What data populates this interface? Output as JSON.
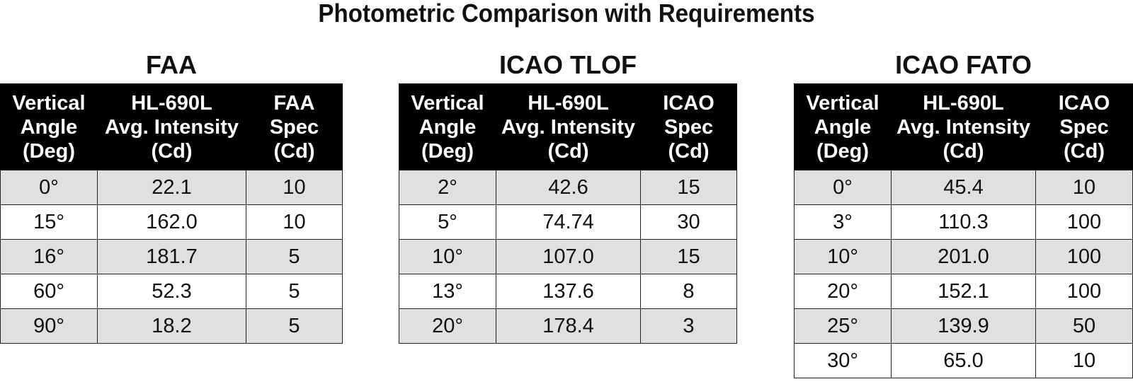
{
  "title": "Photometric Comparison with Requirements",
  "tables": [
    {
      "name": "FAA",
      "headers": [
        [
          "Vertical",
          "Angle",
          "(Deg)"
        ],
        [
          "HL-690L",
          "Avg. Intensity",
          "(Cd)"
        ],
        [
          "FAA",
          "Spec",
          "(Cd)"
        ]
      ],
      "rows": [
        [
          "0°",
          "22.1",
          "10"
        ],
        [
          "15°",
          "162.0",
          "10"
        ],
        [
          "16°",
          "181.7",
          "5"
        ],
        [
          "60°",
          "52.3",
          "5"
        ],
        [
          "90°",
          "18.2",
          "5"
        ]
      ]
    },
    {
      "name": "ICAO TLOF",
      "headers": [
        [
          "Vertical",
          "Angle",
          "(Deg)"
        ],
        [
          "HL-690L",
          "Avg. Intensity",
          "(Cd)"
        ],
        [
          "ICAO",
          "Spec",
          "(Cd)"
        ]
      ],
      "rows": [
        [
          "2°",
          "42.6",
          "15"
        ],
        [
          "5°",
          "74.74",
          "30"
        ],
        [
          "10°",
          "107.0",
          "15"
        ],
        [
          "13°",
          "137.6",
          "8"
        ],
        [
          "20°",
          "178.4",
          "3"
        ]
      ]
    },
    {
      "name": "ICAO FATO",
      "headers": [
        [
          "Vertical",
          "Angle",
          "(Deg)"
        ],
        [
          "HL-690L",
          "Avg. Intensity",
          "(Cd)"
        ],
        [
          "ICAO",
          "Spec",
          "(Cd)"
        ]
      ],
      "rows": [
        [
          "0°",
          "45.4",
          "10"
        ],
        [
          "3°",
          "110.3",
          "100"
        ],
        [
          "10°",
          "201.0",
          "100"
        ],
        [
          "20°",
          "152.1",
          "100"
        ],
        [
          "25°",
          "139.9",
          "50"
        ],
        [
          "30°",
          "65.0",
          "10"
        ]
      ]
    }
  ]
}
